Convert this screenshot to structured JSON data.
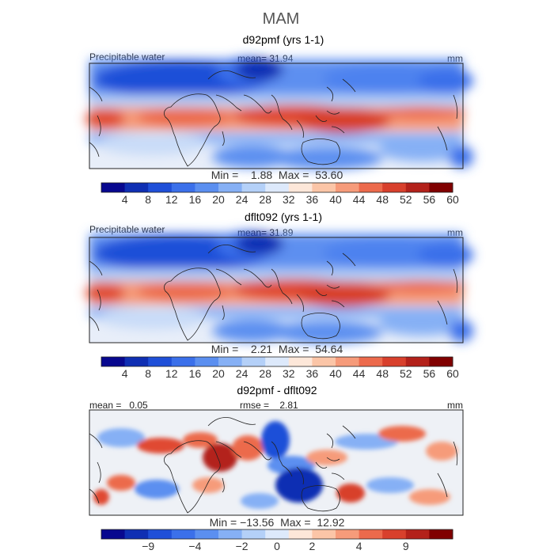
{
  "title": "MAM",
  "colors": {
    "ocean_blue_dark": "#0a1f8f",
    "mid_blue": "#4d82ef",
    "neutral": "#f6f7f7",
    "warm_red": "#e04a32",
    "dark_red": "#7f0000",
    "coast": "#222222"
  },
  "chart_data": [
    {
      "type": "heatmap",
      "title": "d92pmf (yrs 1-1)",
      "variable_label": "Precipitable water",
      "stat_label": "mean=  31.94",
      "units": "mm",
      "minmax_label": "Min =    1.88  Max =  53.60",
      "colorbar": {
        "levels": [
          4,
          8,
          12,
          16,
          20,
          24,
          28,
          32,
          36,
          40,
          44,
          48,
          52,
          56,
          60
        ],
        "tick_labels": [
          "4",
          "8",
          "12",
          "16",
          "20",
          "24",
          "28",
          "32",
          "36",
          "40",
          "44",
          "48",
          "52",
          "56",
          "60"
        ],
        "colors": [
          "#08088f",
          "#0f2fb3",
          "#1f4fd8",
          "#3b70ea",
          "#5b8ff0",
          "#86b0f5",
          "#b4d0f8",
          "#dde9fb",
          "#fde7d9",
          "#fbc5a7",
          "#f69b7a",
          "#ec6a4c",
          "#d8402c",
          "#b3211a",
          "#800000"
        ]
      }
    },
    {
      "type": "heatmap",
      "title": "dflt092 (yrs 1-1)",
      "variable_label": "Precipitable water",
      "stat_label": "mean=  31.89",
      "units": "mm",
      "minmax_label": "Min =    2.21  Max =  54.64",
      "colorbar": {
        "levels": [
          4,
          8,
          12,
          16,
          20,
          24,
          28,
          32,
          36,
          40,
          44,
          48,
          52,
          56,
          60
        ],
        "tick_labels": [
          "4",
          "8",
          "12",
          "16",
          "20",
          "24",
          "28",
          "32",
          "36",
          "40",
          "44",
          "48",
          "52",
          "56",
          "60"
        ],
        "colors": [
          "#08088f",
          "#0f2fb3",
          "#1f4fd8",
          "#3b70ea",
          "#5b8ff0",
          "#86b0f5",
          "#b4d0f8",
          "#dde9fb",
          "#fde7d9",
          "#fbc5a7",
          "#f69b7a",
          "#ec6a4c",
          "#d8402c",
          "#b3211a",
          "#800000"
        ]
      }
    },
    {
      "type": "heatmap",
      "title": "d92pmf - dflt092",
      "variable_label": "mean =   0.05",
      "stat_label": "rmse =    2.81",
      "units": "mm",
      "minmax_label": "Min = −13.56  Max =  12.92",
      "colorbar": {
        "tick_labels": [
          "−9",
          "−4",
          "−2",
          "0",
          "2",
          "4",
          "9"
        ],
        "colors": [
          "#08088f",
          "#0f2fb3",
          "#1f4fd8",
          "#3b70ea",
          "#5b8ff0",
          "#86b0f5",
          "#b4d0f8",
          "#dde9fb",
          "#fde7d9",
          "#fbc5a7",
          "#f69b7a",
          "#ec6a4c",
          "#d8402c",
          "#b3211a",
          "#800000"
        ]
      }
    }
  ]
}
